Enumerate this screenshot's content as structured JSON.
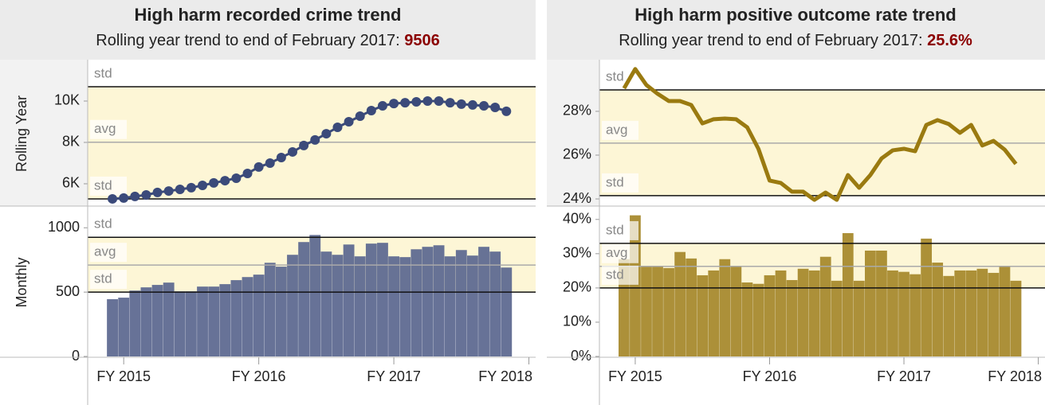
{
  "chart_data": [
    {
      "type": "line",
      "title": "High harm recorded crime trend",
      "subtitle": "Rolling year trend to end of February 2017: ",
      "subtitle_value": "9506",
      "row_label": "Rolling Year",
      "color": "#3b4a7a",
      "markers": true,
      "band_color": "#fdf6d6",
      "x": [
        0,
        1,
        2,
        3,
        4,
        5,
        6,
        7,
        8,
        9,
        10,
        11,
        12,
        13,
        14,
        15,
        16,
        17,
        18,
        19,
        20,
        21,
        22,
        23,
        24,
        25,
        26,
        27,
        28,
        29,
        30,
        31,
        32,
        33,
        34,
        35
      ],
      "values": [
        5270,
        5310,
        5390,
        5460,
        5580,
        5650,
        5730,
        5810,
        5920,
        6040,
        6150,
        6270,
        6500,
        6810,
        7000,
        7270,
        7540,
        7850,
        8120,
        8420,
        8730,
        9000,
        9270,
        9540,
        9770,
        9880,
        9920,
        9960,
        10000,
        10000,
        9920,
        9850,
        9810,
        9770,
        9690,
        9506
      ],
      "xlim": [
        -2.2,
        37.6
      ],
      "ylim": [
        4960,
        11885
      ],
      "yticks": [
        {
          "value": 6000,
          "label": "6K"
        },
        {
          "value": 8000,
          "label": "8K"
        },
        {
          "value": 10000,
          "label": "10K"
        }
      ],
      "ref_lines": [
        {
          "label": "std",
          "value": 10692
        },
        {
          "label": "avg",
          "value": 8010
        },
        {
          "label": "std",
          "value": 5270
        }
      ]
    },
    {
      "type": "bar",
      "row_label": "Monthly",
      "color": "#5f6a91",
      "band_color": "#fdf6d6",
      "x": [
        0,
        1,
        2,
        3,
        4,
        5,
        6,
        7,
        8,
        9,
        10,
        11,
        12,
        13,
        14,
        15,
        16,
        17,
        18,
        19,
        20,
        21,
        22,
        23,
        24,
        25,
        26,
        27,
        28,
        29,
        30,
        31,
        32,
        33,
        34,
        35
      ],
      "values": [
        445,
        457,
        512,
        537,
        556,
        574,
        506,
        506,
        543,
        543,
        562,
        593,
        617,
        636,
        728,
        698,
        790,
        889,
        944,
        815,
        790,
        870,
        778,
        877,
        883,
        778,
        772,
        833,
        852,
        864,
        778,
        827,
        784,
        852,
        815,
        691
      ],
      "xlim": [
        -2.2,
        37.6
      ],
      "ylim": [
        0,
        1150
      ],
      "yticks": [
        0,
        500,
        1000
      ],
      "ref_lines": [
        {
          "label": "std",
          "value": 926
        },
        {
          "label": "avg",
          "value": 710
        },
        {
          "label": "std",
          "value": 500
        }
      ],
      "xticks": [
        {
          "value": 1,
          "label": "FY 2015"
        },
        {
          "value": 13,
          "label": "FY 2016"
        },
        {
          "value": 25,
          "label": "FY 2017"
        },
        {
          "value": 37,
          "label": "FY 2018"
        }
      ]
    },
    {
      "type": "line",
      "title": "High harm positive outcome rate trend",
      "subtitle": "Rolling year trend to end of February 2017: ",
      "subtitle_value": "25.6%",
      "color": "#9a7a10",
      "markers": false,
      "band_color": "#fdf6d6",
      "x": [
        0,
        1,
        2,
        3,
        4,
        5,
        6,
        7,
        8,
        9,
        10,
        11,
        12,
        13,
        14,
        15,
        16,
        17,
        18,
        19,
        20,
        21,
        22,
        23,
        24,
        25,
        26,
        27,
        28,
        29,
        30,
        31,
        32,
        33,
        34,
        35
      ],
      "values": [
        29.05,
        29.93,
        29.2,
        28.8,
        28.47,
        28.47,
        28.29,
        27.45,
        27.64,
        27.67,
        27.64,
        27.27,
        26.29,
        24.84,
        24.73,
        24.33,
        24.33,
        23.96,
        24.29,
        23.96,
        25.09,
        24.51,
        25.09,
        25.85,
        26.22,
        26.29,
        26.18,
        27.38,
        27.6,
        27.42,
        27.02,
        27.38,
        26.44,
        26.65,
        26.25,
        25.6
      ],
      "xlim": [
        -2.2,
        37.6
      ],
      "ylim": [
        23.71,
        30.25
      ],
      "yticks": [
        {
          "value": 24,
          "label": "24%"
        },
        {
          "value": 26,
          "label": "26%"
        },
        {
          "value": 28,
          "label": "28%"
        }
      ],
      "ref_lines": [
        {
          "label": "std",
          "value": 28.98
        },
        {
          "label": "avg",
          "value": 26.55
        },
        {
          "label": "std",
          "value": 24.15
        }
      ]
    },
    {
      "type": "bar",
      "color": "#a88a2e",
      "band_color": "#fdf6d6",
      "x": [
        0,
        1,
        2,
        3,
        4,
        5,
        6,
        7,
        8,
        9,
        10,
        11,
        12,
        13,
        14,
        15,
        16,
        17,
        18,
        19,
        20,
        21,
        22,
        23,
        24,
        25,
        26,
        27,
        28,
        29,
        30,
        31,
        32,
        33,
        34,
        35
      ],
      "values": [
        28.4,
        41.2,
        26.3,
        26.3,
        25.8,
        30.5,
        28.6,
        23.7,
        25.1,
        28.4,
        26.3,
        21.6,
        21.2,
        23.7,
        25.1,
        22.3,
        25.6,
        25.1,
        29.1,
        22.1,
        36.0,
        22.1,
        30.9,
        30.9,
        25.1,
        24.7,
        24.0,
        34.4,
        27.4,
        23.5,
        25.1,
        25.1,
        25.6,
        24.4,
        26.3,
        22.1
      ],
      "xlim": [
        -2.2,
        37.6
      ],
      "ylim": [
        0,
        43.2
      ],
      "yticks": [
        {
          "value": 0,
          "label": "0%"
        },
        {
          "value": 10,
          "label": "10%"
        },
        {
          "value": 20,
          "label": "20%"
        },
        {
          "value": 30,
          "label": "30%"
        },
        {
          "value": 40,
          "label": "40%"
        }
      ],
      "ref_lines": [
        {
          "label": "std",
          "value": 33.0
        },
        {
          "label": "avg",
          "value": 26.3
        },
        {
          "label": "std",
          "value": 20.0
        }
      ],
      "xticks": [
        {
          "value": 1,
          "label": "FY 2015"
        },
        {
          "value": 13,
          "label": "FY 2016"
        },
        {
          "value": 25,
          "label": "FY 2017"
        },
        {
          "value": 37,
          "label": "FY 2018"
        }
      ]
    }
  ]
}
